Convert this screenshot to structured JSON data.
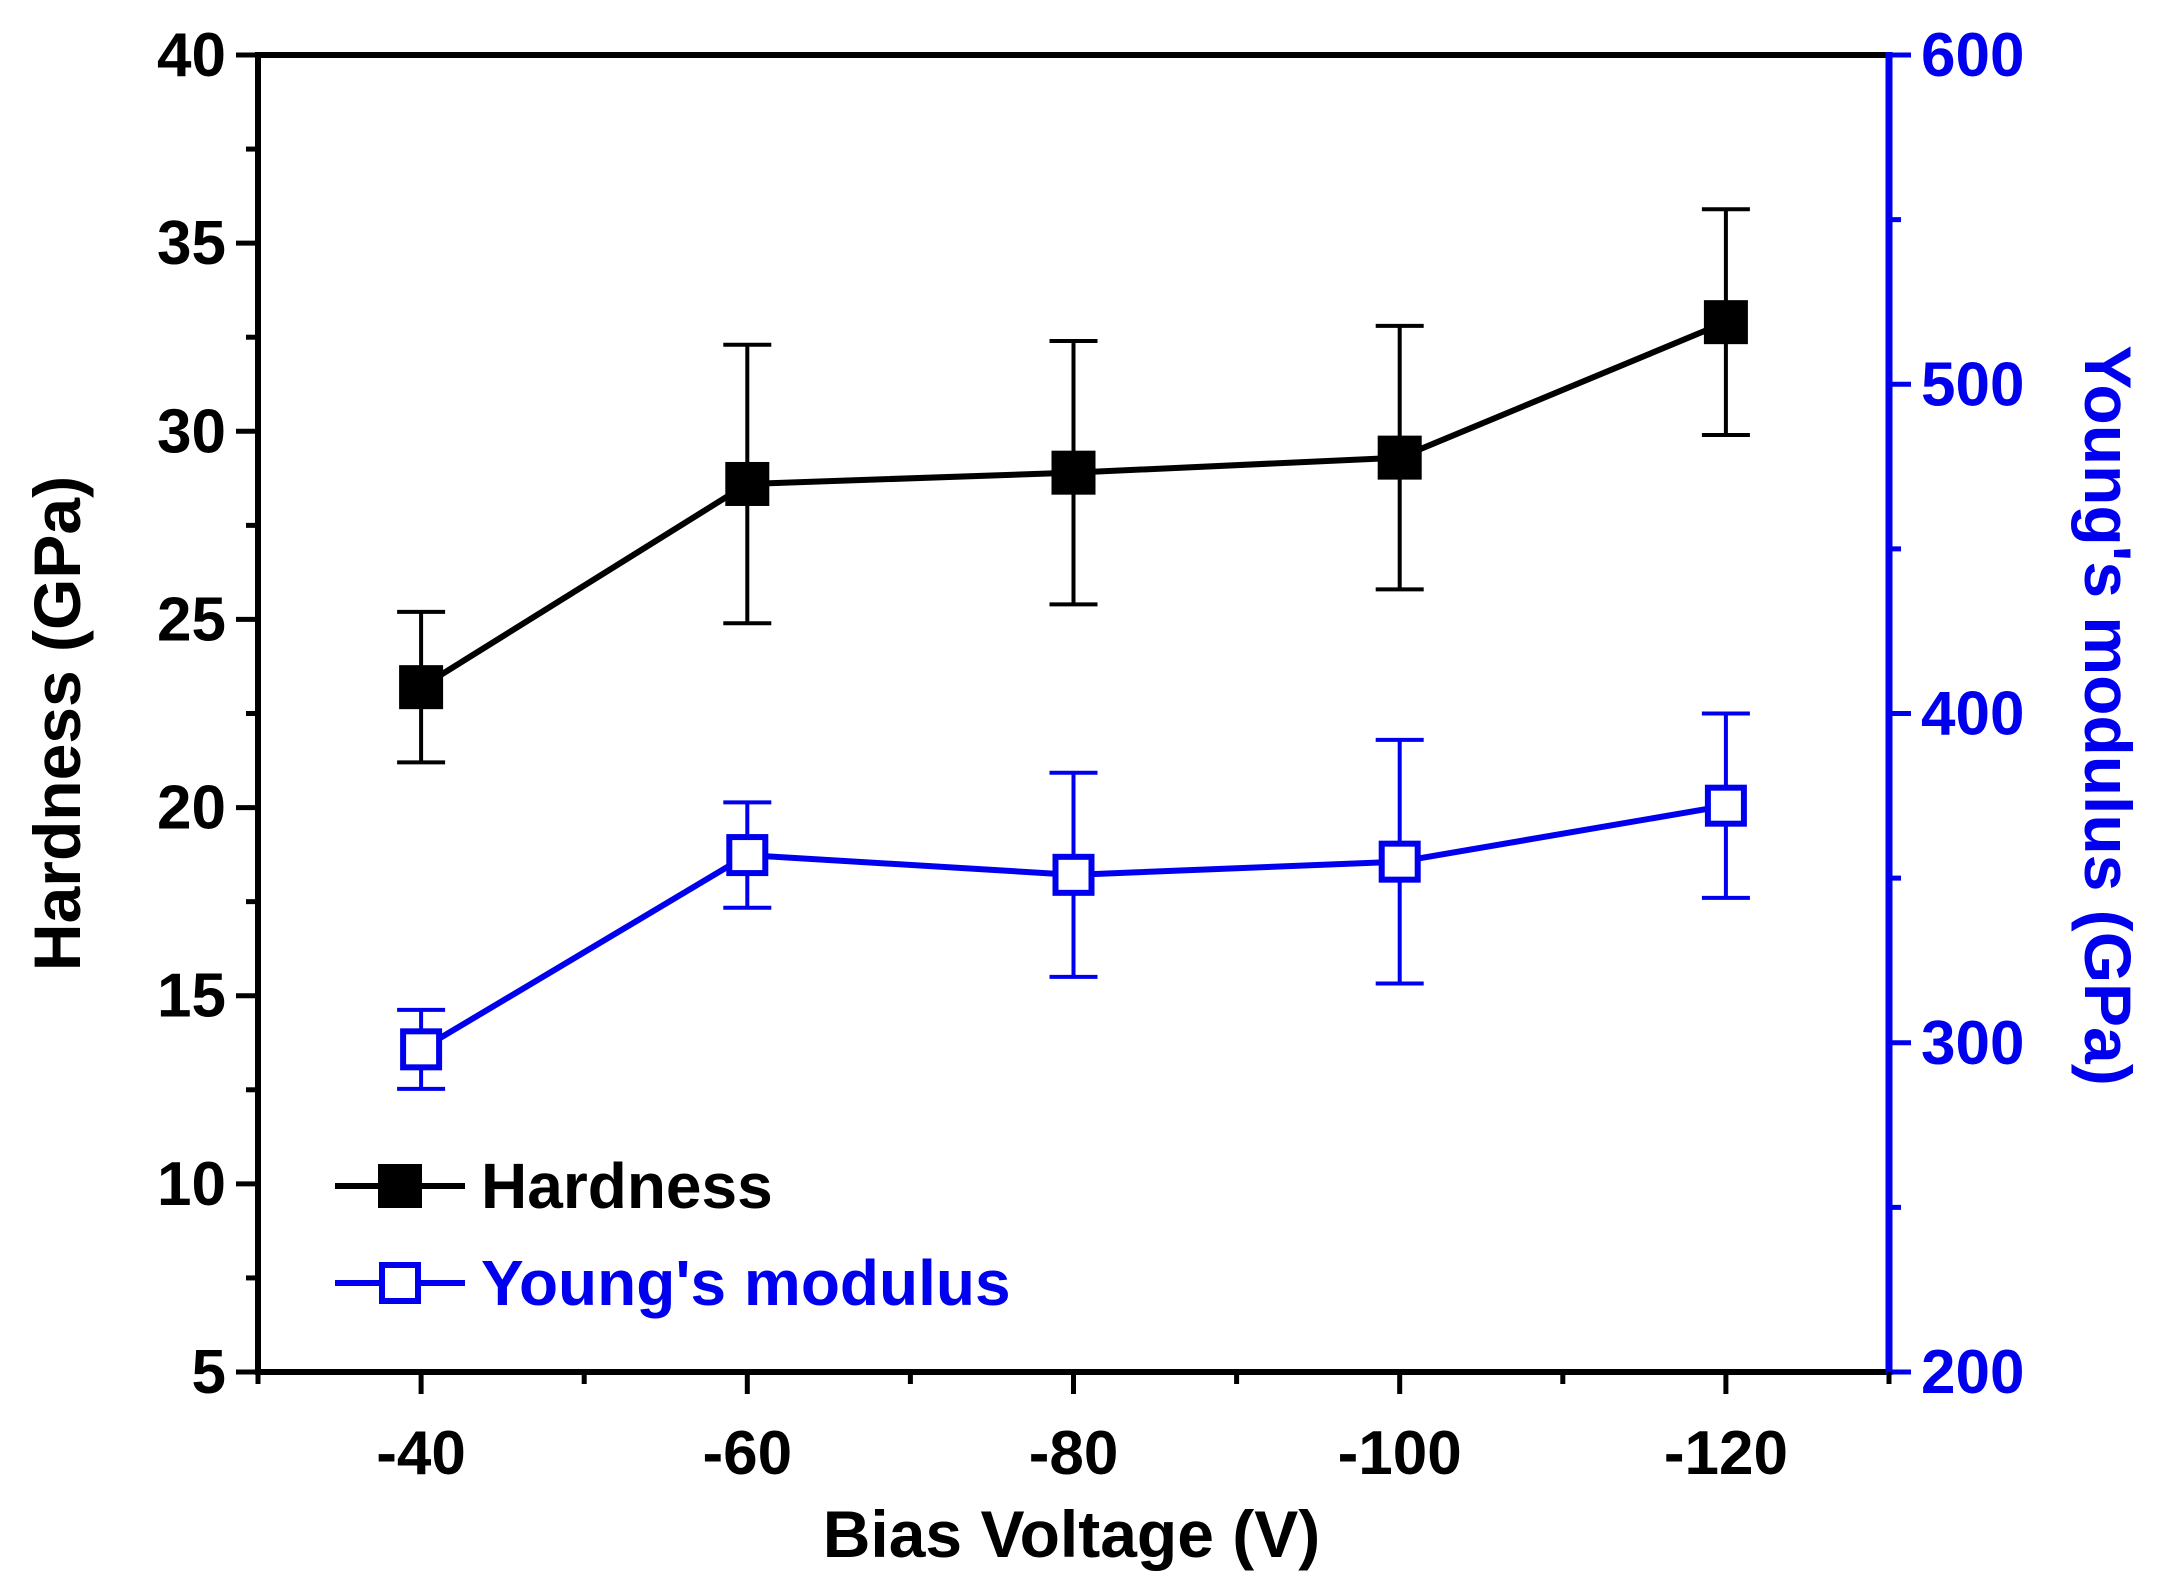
{
  "chart_data": {
    "type": "line",
    "title": "",
    "x": [
      -40,
      -60,
      -80,
      -100,
      -120
    ],
    "xticks": [
      "-40",
      "-60",
      "-80",
      "-100",
      "-120"
    ],
    "xlabel": "Bias Voltage (V)",
    "ylabel": "Hardness (GPa)",
    "y2label": "Young's modulus (GPa)",
    "ylim": [
      5,
      40
    ],
    "y2lim": [
      200,
      600
    ],
    "yticks": [
      "5",
      "10",
      "15",
      "20",
      "25",
      "30",
      "35",
      "40"
    ],
    "y2ticks": [
      "200",
      "300",
      "400",
      "500",
      "600"
    ],
    "grid": false,
    "legend_position": "bottom-left",
    "series": [
      {
        "name": "Hardness",
        "axis": "left",
        "color": "#000000",
        "marker": "filled-square",
        "values": [
          23.2,
          28.6,
          28.9,
          29.3,
          32.9
        ],
        "error": [
          2.0,
          3.7,
          3.5,
          3.5,
          3.0
        ]
      },
      {
        "name": "Young's modulus",
        "axis": "right",
        "color": "#0000ee",
        "marker": "open-square",
        "values": [
          298,
          357,
          351,
          355,
          372
        ],
        "error": [
          12,
          16,
          31,
          37,
          28
        ]
      }
    ]
  }
}
